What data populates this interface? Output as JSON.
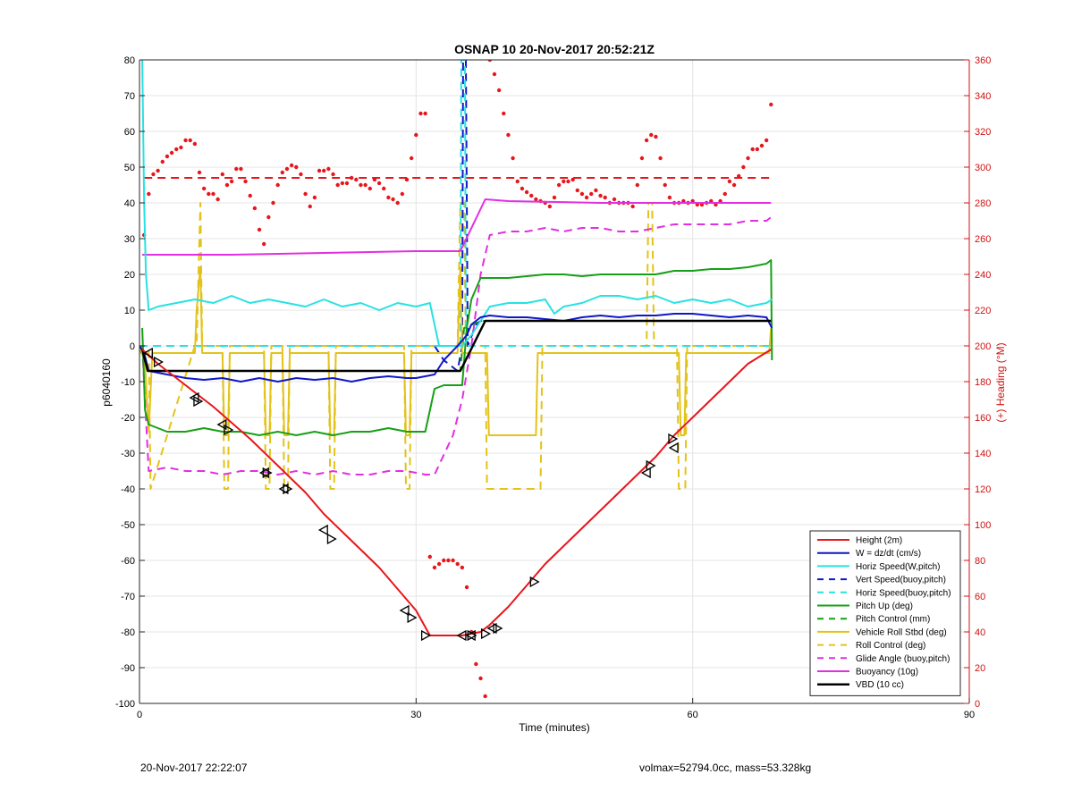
{
  "chart_data": {
    "type": "line",
    "title": "OSNAP 10 20-Nov-2017 20:52:21Z",
    "xlabel": "Time (minutes)",
    "ylabel": "p6040160",
    "y2label": "(+) Heading (°M)",
    "xlim": [
      0,
      90
    ],
    "ylim": [
      -100,
      80
    ],
    "y2lim": [
      0,
      360
    ],
    "xticks": [
      0,
      30,
      60,
      90
    ],
    "yticks": [
      -100,
      -90,
      -80,
      -70,
      -60,
      -50,
      -40,
      -30,
      -20,
      -10,
      0,
      10,
      20,
      30,
      40,
      50,
      60,
      70,
      80
    ],
    "y2ticks": [
      0,
      20,
      40,
      60,
      80,
      100,
      120,
      140,
      160,
      180,
      200,
      220,
      240,
      260,
      280,
      300,
      320,
      340,
      360
    ],
    "grid": true,
    "legend_position": "bottom-right",
    "colors": {
      "red": "#e8161b",
      "blue": "#0f17c8",
      "cyan": "#27e2e2",
      "green": "#16a016",
      "yellow": "#e3c31a",
      "magenta": "#e22fe2",
      "black": "#000000",
      "axis2": "#d01010"
    },
    "series": [
      {
        "name": "Height (2m)",
        "color": "#e8161b",
        "style": "solid",
        "width": 2,
        "x": [
          0.3,
          2,
          4,
          6,
          8,
          10,
          12,
          14,
          16,
          18,
          20,
          22,
          24,
          26,
          28,
          30,
          31.5,
          35,
          36,
          37,
          38,
          40,
          42,
          44,
          46,
          48,
          50,
          52,
          54,
          56,
          58,
          60,
          62,
          64,
          66,
          68.5
        ],
        "y": [
          -1,
          -5,
          -9,
          -13,
          -17,
          -21.5,
          -26,
          -31,
          -36,
          -41,
          -47,
          -52,
          -57,
          -62,
          -68,
          -74,
          -81,
          -81,
          -80.5,
          -80,
          -78,
          -73,
          -67,
          -61,
          -56,
          -51,
          -46,
          -41,
          -36,
          -31,
          -25,
          -20,
          -15,
          -10,
          -5,
          -1
        ]
      },
      {
        "name": "W = dz/dt (cm/s)",
        "color": "#0f17c8",
        "style": "solid",
        "width": 2,
        "x": [
          0,
          0.5,
          1,
          3,
          5,
          7,
          9,
          11,
          13,
          15,
          17,
          19,
          21,
          23,
          25,
          27,
          29,
          30,
          32,
          33,
          34.5,
          35.5,
          36,
          37,
          38,
          40,
          42,
          44,
          46,
          48,
          50,
          52,
          54,
          56,
          58,
          60,
          62,
          64,
          66,
          68,
          68.6
        ],
        "y": [
          0,
          -2,
          -7,
          -8,
          -9,
          -9.5,
          -9,
          -10,
          -9,
          -10,
          -9,
          -9.5,
          -9,
          -10,
          -9,
          -8.5,
          -9,
          -9,
          -8,
          -4,
          0,
          3,
          6,
          8,
          8.5,
          8,
          8,
          7.5,
          7,
          8,
          8.5,
          8,
          8.5,
          8.5,
          9,
          9,
          8.5,
          8,
          8.5,
          8,
          5
        ]
      },
      {
        "name": "Horiz Speed(W,pitch)",
        "color": "#27e2e2",
        "style": "solid",
        "width": 2,
        "x": [
          0.3,
          0.5,
          0.7,
          1,
          2,
          4,
          6,
          8,
          10,
          12,
          14,
          16,
          18,
          20,
          22,
          24,
          26,
          28,
          30,
          31.5,
          32.5,
          35,
          36,
          37,
          38,
          40,
          42,
          44,
          45,
          46,
          48,
          50,
          52,
          54,
          56,
          58,
          60,
          62,
          64,
          66,
          68,
          68.6
        ],
        "y": [
          80,
          40,
          20,
          10,
          11,
          12,
          13,
          12,
          14,
          12,
          13,
          12,
          11,
          13,
          11,
          12,
          10,
          12,
          11,
          12,
          0,
          0,
          3,
          7,
          11,
          12,
          12,
          13,
          9,
          11,
          12,
          14,
          14,
          13,
          14,
          12,
          13,
          12,
          13,
          11,
          12,
          13
        ]
      },
      {
        "name": "Vert Speed(buoy,pitch)",
        "color": "#0f17c8",
        "style": "dashed",
        "width": 2,
        "x": [
          0,
          32,
          33,
          34.5,
          35,
          35.1,
          35.4,
          35.6,
          36.5,
          37,
          38,
          45,
          50,
          55,
          60,
          65,
          68.5
        ],
        "y": [
          0,
          0,
          -4,
          -7,
          0,
          80,
          80,
          0,
          6,
          7,
          7,
          7,
          7,
          7,
          7,
          7,
          7
        ]
      },
      {
        "name": "Horiz Speed(buoy,pitch)",
        "color": "#27e2e2",
        "style": "dashed",
        "width": 2,
        "x": [
          0,
          34.8,
          34.9,
          35.3,
          35.4,
          68.5
        ],
        "y": [
          0,
          0,
          80,
          80,
          0,
          0
        ]
      },
      {
        "name": "Pitch Up (deg)",
        "color": "#16a016",
        "style": "solid",
        "width": 2,
        "x": [
          0.3,
          0.6,
          1,
          3,
          5,
          7,
          9,
          11,
          13,
          15,
          17,
          19,
          21,
          23,
          25,
          27,
          29,
          31,
          32,
          33,
          34,
          35,
          35.5,
          36,
          37,
          38,
          40,
          42,
          44,
          46,
          48,
          50,
          52,
          54,
          56,
          58,
          60,
          62,
          64,
          66,
          68,
          68.5,
          68.6
        ],
        "y": [
          5,
          -18,
          -22,
          -24,
          -24,
          -23,
          -24,
          -24,
          -25,
          -24,
          -25,
          -24,
          -25,
          -24,
          -24,
          -23,
          -24,
          -24,
          -12,
          -11,
          -11,
          -11,
          5,
          13,
          19,
          19,
          19,
          19.5,
          20,
          20,
          19.5,
          20,
          20,
          20,
          20,
          21,
          21,
          21.5,
          21.5,
          22,
          23,
          24,
          -4
        ]
      },
      {
        "name": "Pitch Control (mm)",
        "color": "#16a016",
        "style": "dashed",
        "width": 2,
        "x": [
          0,
          0.6,
          1,
          34.8,
          35.2,
          37,
          68.5
        ],
        "y": [
          0,
          -6,
          -7,
          -7,
          5,
          7,
          7
        ]
      },
      {
        "name": "Vehicle Roll Stbd (deg)",
        "color": "#e3c31a",
        "style": "solid",
        "width": 2,
        "x": [
          0,
          0.6,
          1,
          1.4,
          6,
          6.2,
          6.6,
          6.8,
          9,
          9.2,
          9.6,
          9.8,
          13.5,
          13.7,
          14.1,
          14.3,
          15.5,
          15.7,
          16.1,
          16.3,
          20.5,
          20.7,
          21.1,
          21.3,
          28.7,
          28.9,
          29.3,
          29.5,
          34.5,
          34.8,
          35,
          35.5,
          36.5,
          37,
          37.7,
          37.9,
          43,
          43.2,
          43.8,
          44,
          58.5,
          58.7,
          59.1,
          59.3,
          68,
          68.3,
          68.5
        ],
        "y": [
          0,
          -5,
          -24,
          -2,
          -2,
          10,
          22,
          -2,
          -2,
          -25,
          -25,
          -2,
          -2,
          -25,
          -25,
          -2,
          -2,
          -25,
          -25,
          -2,
          -2,
          -25,
          -25,
          -2,
          -2,
          -25,
          -25,
          -2,
          -2,
          22,
          -2,
          -2,
          -2,
          -2,
          -2,
          -25,
          -25,
          -2,
          -2,
          -2,
          -2,
          -25,
          -25,
          -2,
          -2,
          -2,
          5
        ]
      },
      {
        "name": "Roll Control (deg)",
        "color": "#e3c31a",
        "style": "dashed",
        "width": 2,
        "x": [
          0,
          1,
          1.2,
          6,
          6.2,
          6.6,
          6.8,
          9,
          9.2,
          9.6,
          9.8,
          13.5,
          13.7,
          14.1,
          14.3,
          15.5,
          15.7,
          16.1,
          16.3,
          20.5,
          20.7,
          21.1,
          21.3,
          28.7,
          28.9,
          29.3,
          29.5,
          34.5,
          34.8,
          35.2,
          35.4,
          37.5,
          37.7,
          43.5,
          43.7,
          55,
          55.2,
          55.6,
          55.8,
          58.3,
          58.5,
          59.2,
          59.4,
          68.5
        ],
        "y": [
          0,
          0,
          -40,
          0,
          0,
          40,
          0,
          0,
          -40,
          -40,
          0,
          0,
          -40,
          -40,
          0,
          0,
          -40,
          -40,
          0,
          0,
          -40,
          -40,
          0,
          0,
          -40,
          -40,
          0,
          0,
          40,
          40,
          0,
          0,
          -40,
          -40,
          0,
          0,
          40,
          40,
          0,
          0,
          -40,
          -40,
          0,
          0
        ]
      },
      {
        "name": "Glide Angle (buoy,pitch)",
        "color": "#e22fe2",
        "style": "dashed",
        "width": 2,
        "x": [
          0.3,
          0.8,
          1,
          3,
          5,
          7,
          9,
          11,
          13,
          15,
          17,
          19,
          21,
          23,
          25,
          27,
          29,
          31,
          32,
          34,
          35,
          36,
          37,
          38,
          40,
          42,
          44,
          46,
          48,
          50,
          52,
          54,
          56,
          58,
          60,
          62,
          64,
          66,
          68,
          68.5
        ],
        "y": [
          0,
          -25,
          -35,
          -34,
          -35,
          -35,
          -36,
          -35,
          -35,
          -36,
          -35,
          -36,
          -35,
          -36,
          -36,
          -35,
          -35,
          -36,
          -36,
          -25,
          -15,
          0,
          20,
          31,
          32,
          32,
          33,
          32,
          33,
          33,
          32,
          32,
          33,
          34,
          34,
          34,
          34,
          35,
          35,
          36
        ]
      },
      {
        "name": "Buoyancy (10g)",
        "color": "#e22fe2",
        "style": "solid",
        "width": 2,
        "x": [
          0.3,
          10,
          20,
          30,
          34.8,
          37.5,
          40,
          50,
          60,
          68.5
        ],
        "y": [
          25.5,
          25.5,
          26,
          26.5,
          26.5,
          41,
          40.5,
          40,
          40,
          40
        ]
      },
      {
        "name": "VBD (10 cc)",
        "color": "#000000",
        "style": "solid",
        "width": 2.5,
        "x": [
          0.3,
          0.6,
          0.9,
          34.8,
          37.5,
          68.5
        ],
        "y": [
          -1,
          -4,
          -7,
          -7,
          7,
          7
        ]
      }
    ],
    "heading_series": {
      "axis": "right",
      "color": "#e8161b",
      "style": "dots",
      "x": [
        0.5,
        1,
        1.5,
        2,
        2.5,
        3,
        3.5,
        4,
        4.5,
        5,
        5.5,
        6,
        6.5,
        7,
        7.5,
        8,
        8.5,
        9,
        9.5,
        10,
        10.5,
        11,
        11.5,
        12,
        12.5,
        13,
        13.5,
        14,
        14.5,
        15,
        15.5,
        16,
        16.5,
        17,
        17.5,
        18,
        18.5,
        19,
        19.5,
        20,
        20.5,
        21,
        21.5,
        22,
        22.5,
        23,
        23.5,
        24,
        24.5,
        25,
        25.5,
        26,
        26.5,
        27,
        27.5,
        28,
        28.5,
        29,
        29.5,
        30,
        30.5,
        31,
        31.5,
        32,
        32.5,
        33,
        33.5,
        34,
        34.5,
        35,
        35.5,
        36,
        36.5,
        37,
        37.5,
        38,
        38.5,
        39,
        39.5,
        40,
        40.5,
        41,
        41.5,
        42,
        42.5,
        43,
        43.5,
        44,
        44.5,
        45,
        45.5,
        46,
        46.5,
        47,
        47.5,
        48,
        48.5,
        49,
        49.5,
        50,
        50.5,
        51,
        51.5,
        52,
        52.5,
        53,
        53.5,
        54,
        54.5,
        55,
        55.5,
        56,
        56.5,
        57,
        57.5,
        58,
        58.5,
        59,
        59.5,
        60,
        60.5,
        61,
        61.5,
        62,
        62.5,
        63,
        63.5,
        64,
        64.5,
        65,
        65.5,
        66,
        66.5,
        67,
        67.5,
        68,
        68.5
      ],
      "y": [
        262,
        285,
        296,
        298,
        303,
        306,
        308,
        310,
        311,
        315,
        315,
        313,
        297,
        288,
        285,
        285,
        282,
        296,
        290,
        292,
        299,
        299,
        292,
        284,
        277,
        265,
        257,
        272,
        280,
        290,
        297,
        299,
        301,
        300,
        296,
        285,
        278,
        283,
        298,
        298,
        299,
        296,
        290,
        291,
        291,
        294,
        293,
        290,
        290,
        288,
        293,
        291,
        288,
        283,
        282,
        280,
        285,
        293,
        305,
        318,
        330,
        330,
        82,
        76,
        78,
        80,
        80,
        80,
        78,
        76,
        65,
        40,
        22,
        14,
        4,
        360,
        352,
        343,
        330,
        318,
        305,
        292,
        288,
        286,
        284,
        282,
        281,
        280,
        278,
        283,
        290,
        292,
        292,
        293,
        287,
        285,
        283,
        285,
        287,
        284,
        283,
        280,
        282,
        280,
        280,
        280,
        278,
        290,
        305,
        315,
        318,
        317,
        305,
        290,
        283,
        280,
        280,
        281,
        280,
        281,
        279,
        279,
        280,
        281,
        279,
        281,
        285,
        292,
        290,
        295,
        300,
        305,
        310,
        310,
        312,
        315,
        335
      ]
    },
    "markers": {
      "right_triangle": {
        "x": [
          2,
          6.3,
          9.6,
          13.8,
          16,
          20.8,
          29.5,
          31,
          36,
          37.5,
          38.8,
          42.8,
          55.4,
          57.8
        ],
        "y": [
          -4.5,
          -15.5,
          -23.5,
          -35.5,
          -40,
          -54,
          -76,
          -81,
          -81,
          -80.5,
          -79,
          -66,
          -33.5,
          -26
        ]
      },
      "left_triangle": {
        "x": [
          1,
          6,
          9,
          13.6,
          15.7,
          20,
          28.8,
          35,
          36,
          38.3,
          55,
          58
        ],
        "y": [
          -2,
          -14.5,
          -22,
          -35.5,
          -40,
          -51.5,
          -74,
          -81,
          -81,
          -79,
          -35.5,
          -28.5
        ]
      },
      "reference_lines": [
        {
          "axis": "right",
          "value": 294,
          "color": "#e8161b",
          "style": "dashed",
          "x": [
            0.5,
            68.5
          ]
        }
      ]
    }
  },
  "footer": {
    "left": "20-Nov-2017 22:22:07",
    "right": "volmax=52794.0cc, mass=53.328kg"
  }
}
